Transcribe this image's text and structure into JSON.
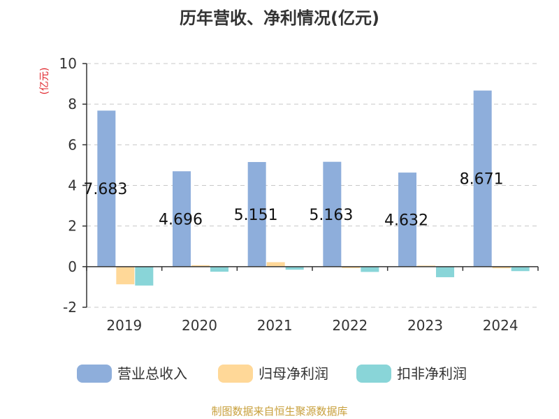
{
  "chart_data": {
    "type": "bar",
    "title": "历年营收、净利情况(亿元)",
    "unit_label": "(亿元)",
    "categories": [
      "2019",
      "2020",
      "2021",
      "2022",
      "2023",
      "2024"
    ],
    "series": [
      {
        "name": "营业总收入",
        "color": "#8eaedb",
        "values": [
          7.683,
          4.696,
          5.151,
          5.163,
          4.632,
          8.671
        ]
      },
      {
        "name": "归母净利润",
        "color": "#ffd898",
        "values": [
          -0.87,
          0.07,
          0.22,
          -0.07,
          0.05,
          -0.08
        ]
      },
      {
        "name": "扣非净利润",
        "color": "#89d5d8",
        "values": [
          -0.93,
          -0.25,
          -0.15,
          -0.26,
          -0.52,
          -0.22
        ]
      }
    ],
    "data_labels_series": 0,
    "ylim": [
      -2,
      10
    ],
    "yticks": [
      -2,
      0,
      2,
      4,
      6,
      8,
      10
    ],
    "grid": true,
    "legend_position": "bottom"
  },
  "source_note": "制图数据来自恒生聚源数据库"
}
